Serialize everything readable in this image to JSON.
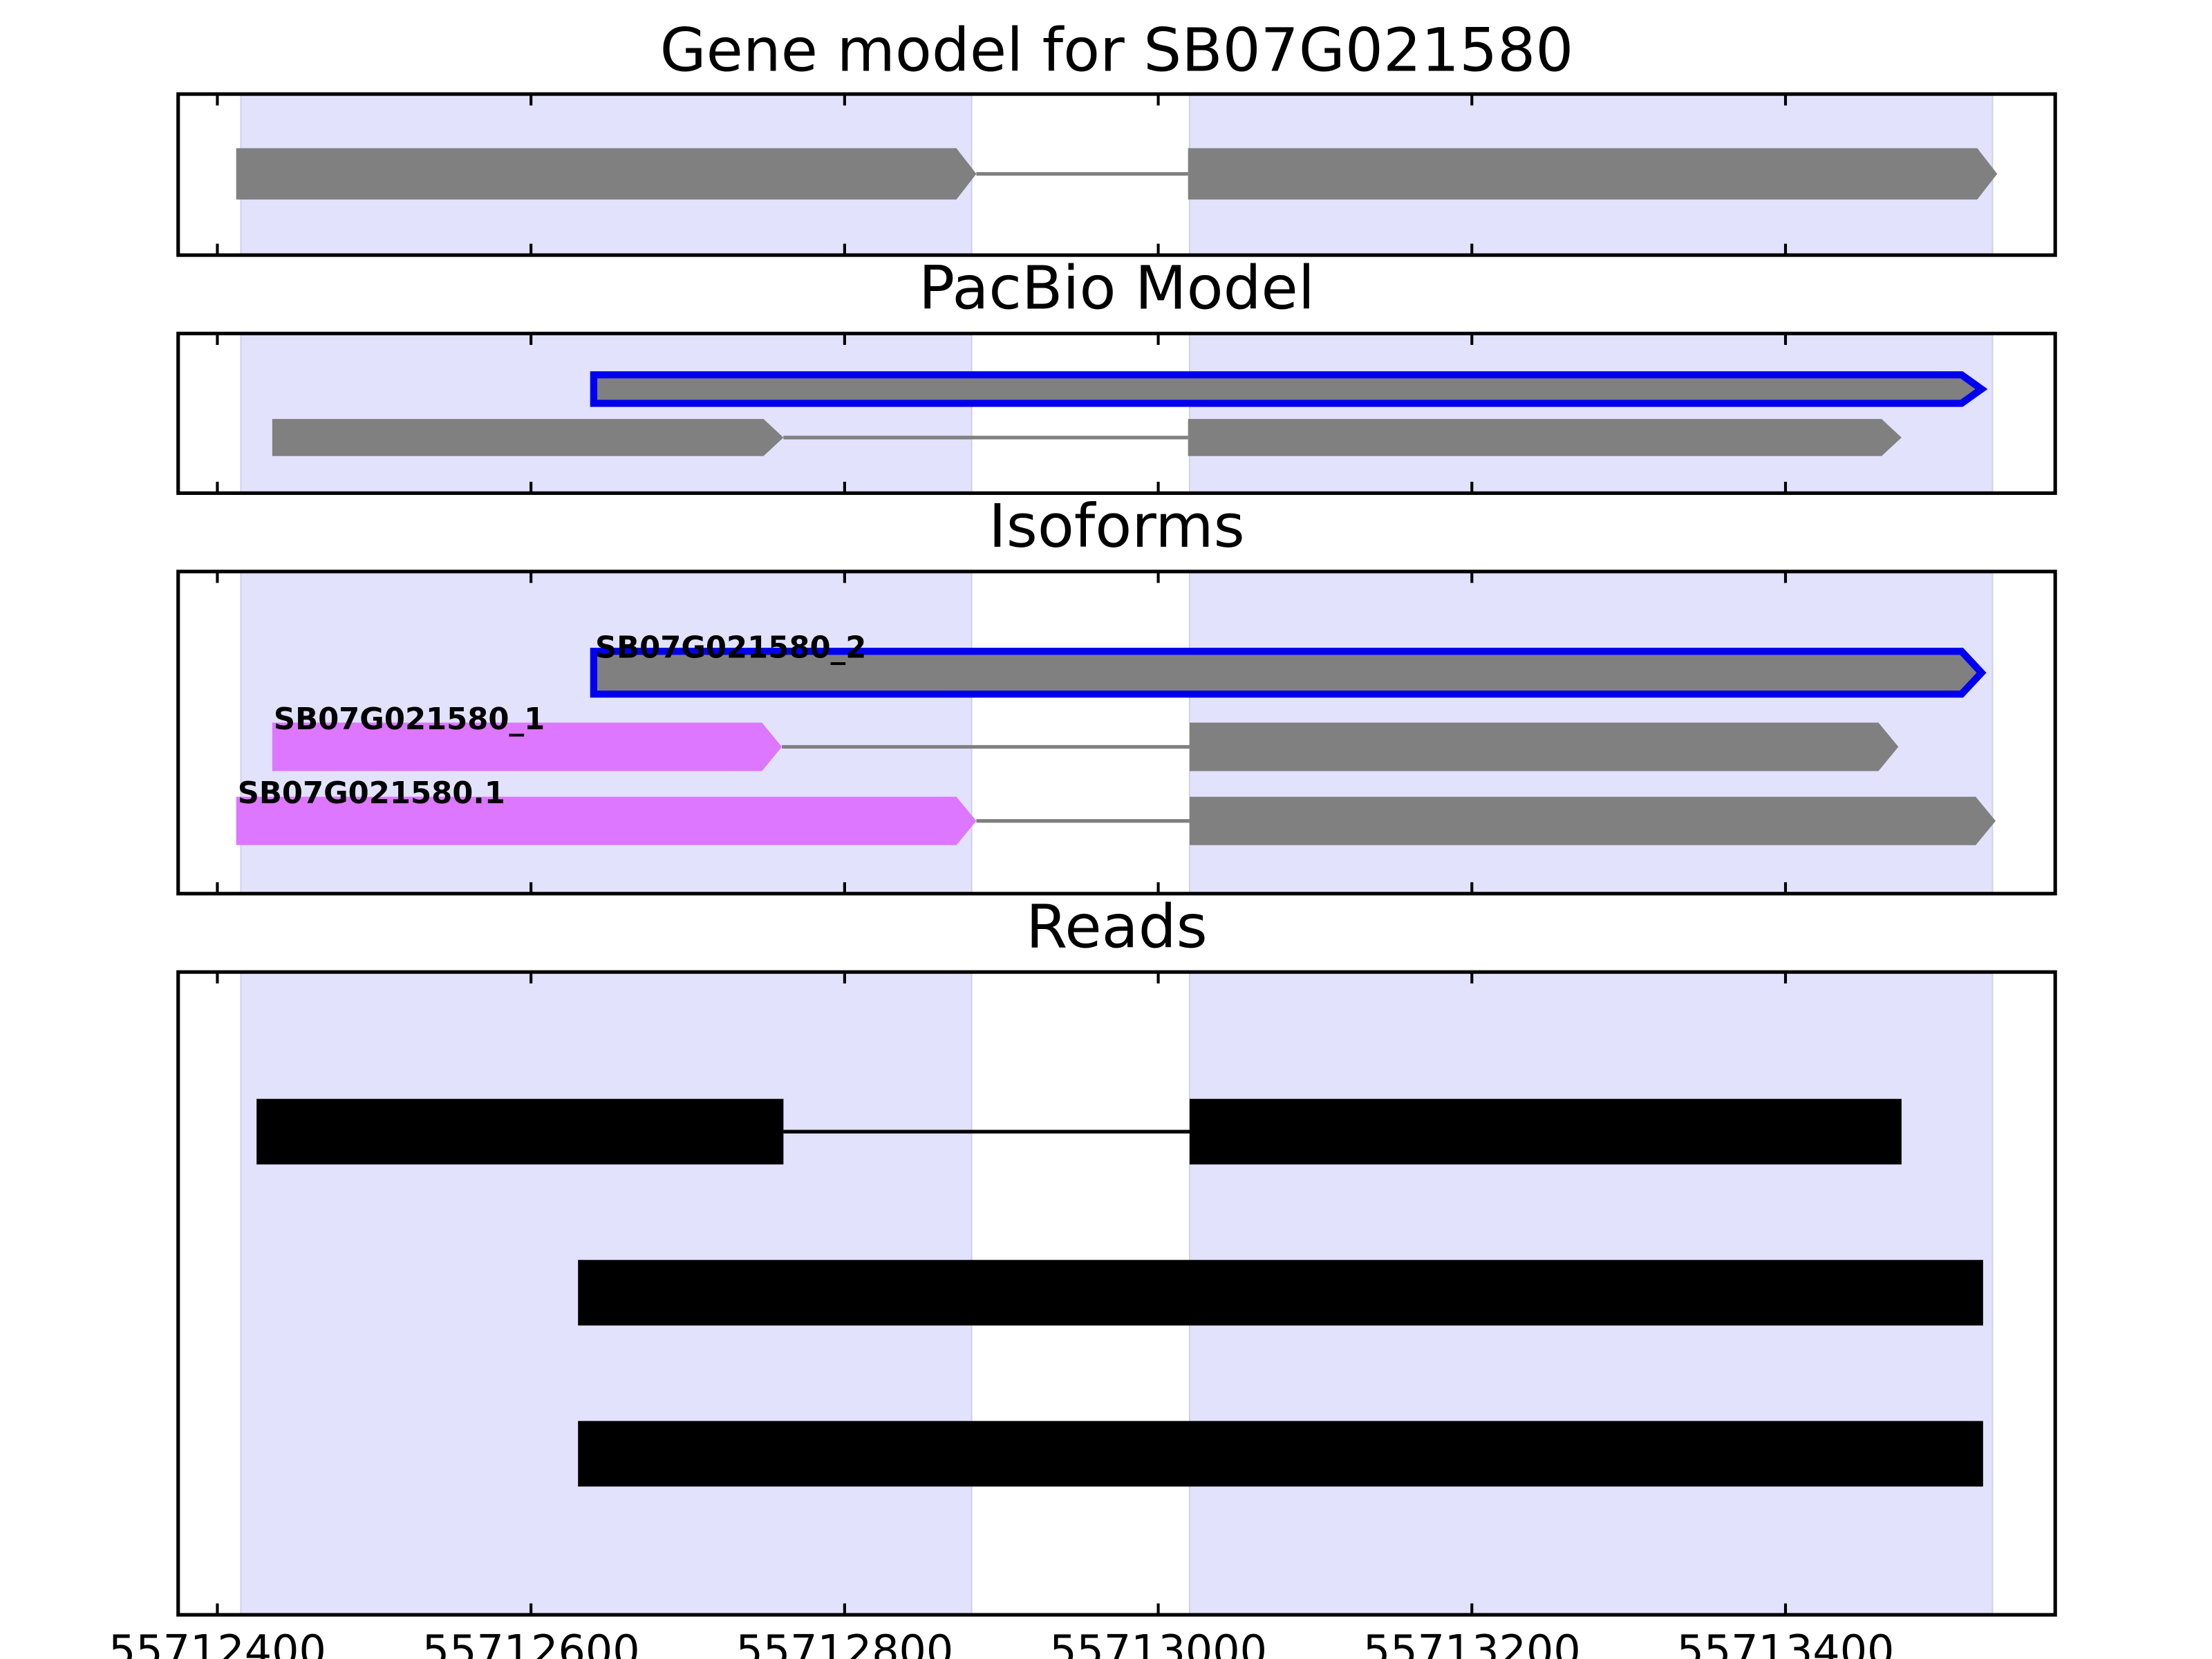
{
  "chart_data": {
    "type": "gene_track",
    "xlim": [
      55712375,
      55713572
    ],
    "xticks": [
      55712400,
      55712600,
      55712800,
      55713000,
      55713200,
      55713400
    ],
    "shade": {
      "color": "#e2e2fd",
      "regions": [
        [
          55712415,
          55712881
        ],
        [
          55713020,
          55713532
        ]
      ]
    },
    "intron_color": "#808080",
    "panels": [
      {
        "title": "Gene model for SB07G021580",
        "marker": "arrow",
        "features": [
          {
            "exons": [
              [
                55712412,
                55712884
              ],
              [
                55713019,
                55713535
              ]
            ],
            "colors": [
              "#808080",
              "#808080"
            ]
          }
        ]
      },
      {
        "title": "PacBio Model",
        "marker": "arrow",
        "features": [
          {
            "exons": [
              [
                55712640,
                55713525
              ]
            ],
            "colors": [
              "#808080"
            ],
            "edge": "#0000ee"
          },
          {
            "exons": [
              [
                55712435,
                55712761
              ],
              [
                55713019,
                55713474
              ]
            ],
            "colors": [
              "#808080",
              "#808080"
            ]
          }
        ]
      },
      {
        "title": "Isoforms",
        "marker": "arrow",
        "features": [
          {
            "name": "SB07G021580_2",
            "exons": [
              [
                55712640,
                55713525
              ]
            ],
            "colors": [
              "#808080"
            ],
            "edge": "#0000ee"
          },
          {
            "name": "SB07G021580_1",
            "exons": [
              [
                55712435,
                55712760
              ],
              [
                55713020,
                55713472
              ]
            ],
            "colors": [
              "#dd77ff",
              "#808080"
            ]
          },
          {
            "name": "SB07G021580.1",
            "exons": [
              [
                55712412,
                55712884
              ],
              [
                55713020,
                55713534
              ]
            ],
            "colors": [
              "#dd77ff",
              "#808080"
            ]
          }
        ]
      },
      {
        "title": "Reads",
        "marker": "box",
        "intron_color": "#000000",
        "features": [
          {
            "exons": [
              [
                55712425,
                55712761
              ],
              [
                55713020,
                55713474
              ]
            ],
            "colors": [
              "#000000",
              "#000000"
            ]
          },
          {
            "exons": [
              [
                55712630,
                55713526
              ]
            ],
            "colors": [
              "#000000"
            ]
          },
          {
            "exons": [
              [
                55712630,
                55713526
              ]
            ],
            "colors": [
              "#000000"
            ]
          }
        ]
      }
    ]
  }
}
